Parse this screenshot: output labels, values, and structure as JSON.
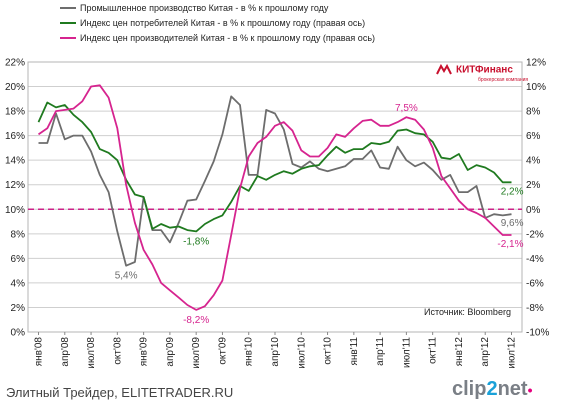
{
  "chart_data": {
    "type": "line",
    "legend": [
      {
        "name": "Промышленное производство Китая - в % к прошлому году",
        "color": "#6d6d6d"
      },
      {
        "name": "Индекс цен потребителей Китая - в % к прошлому году (правая ось)",
        "color": "#1f7a1f"
      },
      {
        "name": "Индекс цен производителей Китая - в % к прошлому году (правая ось)",
        "color": "#d6248f"
      }
    ],
    "legend_position": "top-left",
    "y_left": {
      "min": 0,
      "max": 22,
      "step": 2,
      "ticks": [
        "0%",
        "2%",
        "4%",
        "6%",
        "8%",
        "10%",
        "12%",
        "14%",
        "16%",
        "18%",
        "20%",
        "22%"
      ]
    },
    "y_right": {
      "min": -10,
      "max": 12,
      "step": 2,
      "ticks": [
        "-10%",
        "-8%",
        "-6%",
        "-4%",
        "-2%",
        "0%",
        "2%",
        "4%",
        "6%",
        "8%",
        "10%",
        "12%"
      ]
    },
    "x_ticks": [
      "янв'08",
      "апр'08",
      "июл'08",
      "окт'08",
      "янв'09",
      "апр'09",
      "июл'09",
      "окт'09",
      "янв'10",
      "апр'10",
      "июл'10",
      "окт'10",
      "янв'11",
      "апр'11",
      "июл'11",
      "окт'11",
      "янв'12",
      "апр'12",
      "июл'12"
    ],
    "grid": true,
    "zero_line_right": {
      "value": 0,
      "style": "dashed",
      "color": "#cc2288"
    },
    "series": [
      {
        "name": "Промышленное производство Китая - в % к прошлому году",
        "axis": "left",
        "color": "#6d6d6d",
        "x": [
          "2008-01",
          "2008-02",
          "2008-03",
          "2008-04",
          "2008-05",
          "2008-06",
          "2008-07",
          "2008-08",
          "2008-09",
          "2008-10",
          "2008-11",
          "2008-12",
          "2009-01",
          "2009-02",
          "2009-03",
          "2009-04",
          "2009-05",
          "2009-06",
          "2009-07",
          "2009-08",
          "2009-09",
          "2009-10",
          "2009-11",
          "2009-12",
          "2010-01",
          "2010-02",
          "2010-03",
          "2010-04",
          "2010-05",
          "2010-06",
          "2010-07",
          "2010-08",
          "2010-09",
          "2010-10",
          "2010-11",
          "2010-12",
          "2011-01",
          "2011-02",
          "2011-03",
          "2011-04",
          "2011-05",
          "2011-06",
          "2011-07",
          "2011-08",
          "2011-09",
          "2011-10",
          "2011-11",
          "2011-12",
          "2012-01",
          "2012-02",
          "2012-03",
          "2012-04",
          "2012-05",
          "2012-06",
          "2012-07"
        ],
        "values": [
          15.4,
          15.4,
          17.8,
          15.7,
          16.0,
          16.0,
          14.7,
          12.8,
          11.4,
          8.2,
          5.4,
          5.7,
          11.0,
          8.3,
          8.3,
          7.3,
          8.9,
          10.7,
          10.8,
          12.3,
          13.9,
          16.1,
          19.2,
          18.5,
          12.8,
          12.8,
          18.1,
          17.8,
          16.5,
          13.7,
          13.4,
          13.9,
          13.3,
          13.1,
          13.3,
          13.5,
          14.1,
          14.1,
          14.8,
          13.4,
          13.3,
          15.1,
          14.0,
          13.5,
          13.8,
          13.2,
          12.4,
          12.8,
          11.4,
          11.4,
          11.9,
          9.3,
          9.6,
          9.5,
          9.6
        ],
        "labels": [
          {
            "x": "2008-11",
            "text": "5,4%"
          },
          {
            "x": "2012-07",
            "text": "9,6%"
          }
        ]
      },
      {
        "name": "Индекс цен потребителей Китая - в % к прошлому году (правая ось)",
        "axis": "right",
        "color": "#1f7a1f",
        "x": [
          "2008-01",
          "2008-02",
          "2008-03",
          "2008-04",
          "2008-05",
          "2008-06",
          "2008-07",
          "2008-08",
          "2008-09",
          "2008-10",
          "2008-11",
          "2008-12",
          "2009-01",
          "2009-02",
          "2009-03",
          "2009-04",
          "2009-05",
          "2009-06",
          "2009-07",
          "2009-08",
          "2009-09",
          "2009-10",
          "2009-11",
          "2009-12",
          "2010-01",
          "2010-02",
          "2010-03",
          "2010-04",
          "2010-05",
          "2010-06",
          "2010-07",
          "2010-08",
          "2010-09",
          "2010-10",
          "2010-11",
          "2010-12",
          "2011-01",
          "2011-02",
          "2011-03",
          "2011-04",
          "2011-05",
          "2011-06",
          "2011-07",
          "2011-08",
          "2011-09",
          "2011-10",
          "2011-11",
          "2011-12",
          "2012-01",
          "2012-02",
          "2012-03",
          "2012-04",
          "2012-05",
          "2012-06",
          "2012-07"
        ],
        "values": [
          7.1,
          8.7,
          8.3,
          8.5,
          7.7,
          7.1,
          6.3,
          4.9,
          4.6,
          4.0,
          2.4,
          1.2,
          1.0,
          -1.6,
          -1.2,
          -1.5,
          -1.4,
          -1.7,
          -1.8,
          -1.2,
          -0.8,
          -0.5,
          0.6,
          1.9,
          1.5,
          2.7,
          2.4,
          2.8,
          3.1,
          2.9,
          3.3,
          3.5,
          3.6,
          4.4,
          5.1,
          4.6,
          4.9,
          4.9,
          5.4,
          5.3,
          5.5,
          6.4,
          6.5,
          6.2,
          6.1,
          5.5,
          4.2,
          4.1,
          4.5,
          3.2,
          3.6,
          3.4,
          3.0,
          2.2,
          2.2
        ],
        "labels": [
          {
            "x": "2009-07",
            "text": "-1,8%"
          },
          {
            "x": "2012-07",
            "text": "2,2%"
          }
        ]
      },
      {
        "name": "Индекс цен производителей Китая - в % к прошлому году (правая ось)",
        "axis": "right",
        "color": "#d6248f",
        "x": [
          "2008-01",
          "2008-02",
          "2008-03",
          "2008-04",
          "2008-05",
          "2008-06",
          "2008-07",
          "2008-08",
          "2008-09",
          "2008-10",
          "2008-11",
          "2008-12",
          "2009-01",
          "2009-02",
          "2009-03",
          "2009-04",
          "2009-05",
          "2009-06",
          "2009-07",
          "2009-08",
          "2009-09",
          "2009-10",
          "2009-11",
          "2009-12",
          "2010-01",
          "2010-02",
          "2010-03",
          "2010-04",
          "2010-05",
          "2010-06",
          "2010-07",
          "2010-08",
          "2010-09",
          "2010-10",
          "2010-11",
          "2010-12",
          "2011-01",
          "2011-02",
          "2011-03",
          "2011-04",
          "2011-05",
          "2011-06",
          "2011-07",
          "2011-08",
          "2011-09",
          "2011-10",
          "2011-11",
          "2011-12",
          "2012-01",
          "2012-02",
          "2012-03",
          "2012-04",
          "2012-05",
          "2012-06",
          "2012-07"
        ],
        "values": [
          6.1,
          6.6,
          8.0,
          8.1,
          8.2,
          8.8,
          10.0,
          10.1,
          9.1,
          6.6,
          2.0,
          -1.1,
          -3.3,
          -4.5,
          -6.0,
          -6.6,
          -7.2,
          -7.8,
          -8.2,
          -7.9,
          -7.0,
          -5.8,
          -2.1,
          1.7,
          4.3,
          5.4,
          5.9,
          6.8,
          7.1,
          6.4,
          4.8,
          4.3,
          4.3,
          5.0,
          6.1,
          5.9,
          6.6,
          7.2,
          7.3,
          6.8,
          6.8,
          7.1,
          7.5,
          7.3,
          6.5,
          5.0,
          2.7,
          1.7,
          0.7,
          0.0,
          -0.3,
          -0.7,
          -1.4,
          -2.1,
          -2.1
        ],
        "labels": [
          {
            "x": "2009-07",
            "text": "-8,2%"
          },
          {
            "x": "2011-07",
            "text": "7,5%"
          },
          {
            "x": "2012-07",
            "text": "-2,1%"
          }
        ]
      }
    ]
  },
  "source_text": "Источник: Bloomberg",
  "brand": {
    "name": "КИТФинанс",
    "tagline": "брокерская компания"
  },
  "footer": {
    "left": "Элитный Трейдер, ELITETRADER.RU",
    "logo_a": "clip",
    "logo_b": "2",
    "logo_c": "net",
    "logo_dot": "•"
  }
}
